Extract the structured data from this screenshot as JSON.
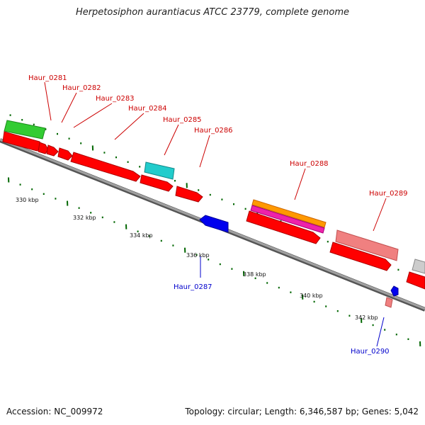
{
  "title": "Herpetosiphon aurantiacus ATCC 23779, complete genome",
  "accession": "Accession: NC_009972",
  "summary": "Topology: circular; Length: 6,346,587 bp; Genes: 5,042",
  "kbp_labels": [
    "330 kbp",
    "332 kbp",
    "334 kbp",
    "336 kbp",
    "338 kbp",
    "340 kbp",
    "342 kbp"
  ],
  "genes": [
    {
      "name": "Haur_0281",
      "color": "#cc0000"
    },
    {
      "name": "Haur_0282",
      "color": "#cc0000"
    },
    {
      "name": "Haur_0283",
      "color": "#cc0000"
    },
    {
      "name": "Haur_0284",
      "color": "#cc0000"
    },
    {
      "name": "Haur_0285",
      "color": "#cc0000"
    },
    {
      "name": "Haur_0286",
      "color": "#cc0000"
    },
    {
      "name": "Haur_0287",
      "color": "#0000cc"
    },
    {
      "name": "Haur_0288",
      "color": "#cc0000"
    },
    {
      "name": "Haur_0289",
      "color": "#cc0000"
    },
    {
      "name": "Haur_0290",
      "color": "#0000cc"
    }
  ],
  "colors": {
    "cds_red": "#ff0000",
    "green": "#33cc33",
    "cyan": "#22cccc",
    "blue": "#0000ee",
    "orange": "#ff9900",
    "magenta": "#ee22aa",
    "pink": "#f08080",
    "gray": "#cccccc",
    "backbone": "#808080",
    "tick": "#006600"
  }
}
